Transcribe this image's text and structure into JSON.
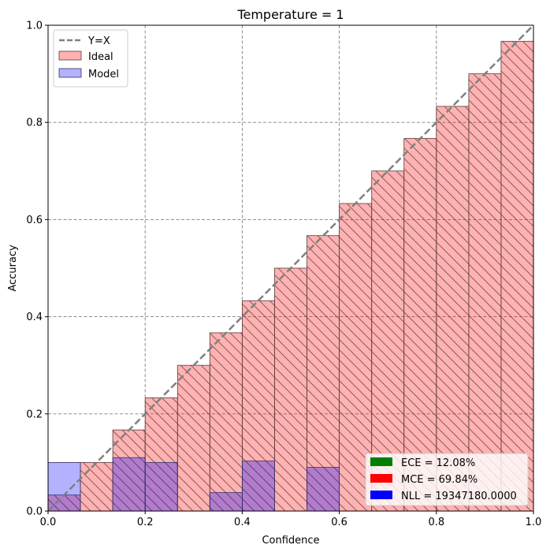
{
  "chart_data": {
    "type": "bar",
    "title": "Temperature = 1",
    "xlabel": "Confidence",
    "ylabel": "Accuracy",
    "xlim": [
      0,
      1
    ],
    "ylim": [
      0,
      1
    ],
    "xticks": [
      "0.0",
      "0.2",
      "0.4",
      "0.6",
      "0.8",
      "1.0"
    ],
    "yticks": [
      "0.0",
      "0.2",
      "0.4",
      "0.6",
      "0.8",
      "1.0"
    ],
    "grid": true,
    "bin_edges": [
      0,
      0.0667,
      0.1333,
      0.2,
      0.2667,
      0.3333,
      0.4,
      0.4667,
      0.5333,
      0.6,
      0.6667,
      0.7333,
      0.8,
      0.8667,
      0.9333,
      1.0
    ],
    "series": [
      {
        "name": "Ideal",
        "color": "#ff0000",
        "hatch": true,
        "values": [
          0.033,
          0.1,
          0.167,
          0.233,
          0.3,
          0.367,
          0.433,
          0.5,
          0.567,
          0.633,
          0.7,
          0.767,
          0.833,
          0.9,
          0.967
        ]
      },
      {
        "name": "Model",
        "color": "#0000ff",
        "values": [
          0.1,
          0.0,
          0.11,
          0.1,
          0.0,
          0.038,
          0.103,
          0.0,
          0.09,
          0.0,
          0.0,
          0.0,
          0.0,
          0.0,
          0.0
        ]
      }
    ],
    "reference_line": {
      "name": "Y=X",
      "color": "#808080"
    },
    "legend": {
      "placement": "top-left",
      "entries": [
        "Y=X",
        "Ideal",
        "Model"
      ]
    },
    "metrics": {
      "placement": "bottom-right",
      "entries": [
        {
          "label": "ECE = 12.08%",
          "color": "#008000"
        },
        {
          "label": "MCE = 69.84%",
          "color": "#ff0000"
        },
        {
          "label": "NLL = 19347180.0000",
          "color": "#0000ff"
        }
      ]
    }
  }
}
